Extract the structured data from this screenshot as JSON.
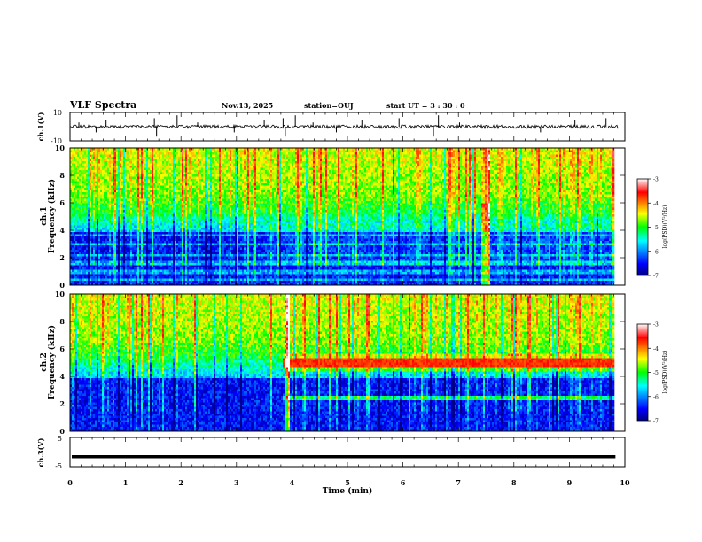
{
  "header": {
    "title": "VLF Spectra",
    "date": "Nov.13, 2025",
    "station": "station=OUJ",
    "start_ut": "start  UT =   3  : 30 : 0"
  },
  "chart_data": [
    {
      "type": "line",
      "panel": "ch1-waveform",
      "ylabel": "ch.1(V)",
      "ylim": [
        -10,
        10
      ],
      "y_ticks": [
        "10",
        "-10"
      ],
      "xlim": [
        0,
        10
      ],
      "baseline": 0,
      "spikes_x": [
        0.16,
        0.47,
        0.65,
        1.52,
        1.56,
        1.93,
        2.3,
        2.96,
        3.5,
        3.84,
        3.88,
        4.06,
        4.38,
        4.8,
        5.26,
        5.93,
        6.55,
        6.64,
        7.02,
        8.48,
        9.1,
        9.66
      ],
      "color": "#000000"
    },
    {
      "type": "heatmap",
      "panel": "ch1-spectrogram",
      "ylabel": "ch.1",
      "ylabel2": "Frequency (kHz)",
      "xlim": [
        0,
        10
      ],
      "data_xmax": 9.83,
      "ylim": [
        0,
        10
      ],
      "y_ticks": [
        "0",
        "2",
        "4",
        "6",
        "8",
        "10"
      ],
      "colorbar": {
        "label": "log(PSD)(V²/Hz)",
        "range": [
          -7,
          -3
        ],
        "ticks": [
          "-3",
          "-4",
          "-5",
          "-6",
          "-7"
        ]
      },
      "features": {
        "bright_bands_khz": [
          0.4,
          1.0,
          1.6,
          2.2,
          3.0,
          3.6
        ],
        "bursts_x": [
          7.48,
          7.52
        ]
      }
    },
    {
      "type": "heatmap",
      "panel": "ch2-spectrogram",
      "ylabel": "ch.2",
      "ylabel2": "Frequency (kHz)",
      "xlim": [
        0,
        10
      ],
      "data_xmax": 9.83,
      "ylim": [
        0,
        10
      ],
      "y_ticks": [
        "0",
        "2",
        "4",
        "6",
        "8",
        "10"
      ],
      "colorbar": {
        "label": "log(PSD)(V²/Hz)",
        "range": [
          -7,
          -3
        ],
        "ticks": [
          "-3",
          "-4",
          "-5",
          "-6",
          "-7"
        ]
      },
      "features": {
        "emission_band_khz": 5.0,
        "emission_start_min": 3.83,
        "secondary_band_khz": 2.4,
        "burst_x": [
          3.85,
          3.95
        ]
      }
    },
    {
      "type": "line",
      "panel": "ch3-waveform",
      "ylabel": "ch.3(V)",
      "ylim": [
        -5,
        5
      ],
      "y_ticks": [
        "5",
        "-5"
      ],
      "xlim": [
        0,
        10
      ],
      "level": -1.6,
      "color": "#000000"
    }
  ],
  "x_axis": {
    "label": "Time (min)",
    "ticks": [
      "0",
      "1",
      "2",
      "3",
      "4",
      "5",
      "6",
      "7",
      "8",
      "9",
      "10"
    ]
  },
  "colors": {
    "jet": [
      "#000080",
      "#0000ff",
      "#00ffff",
      "#00ff00",
      "#ffff00",
      "#ff0000",
      "#ffffff"
    ],
    "axis": "#000000"
  }
}
